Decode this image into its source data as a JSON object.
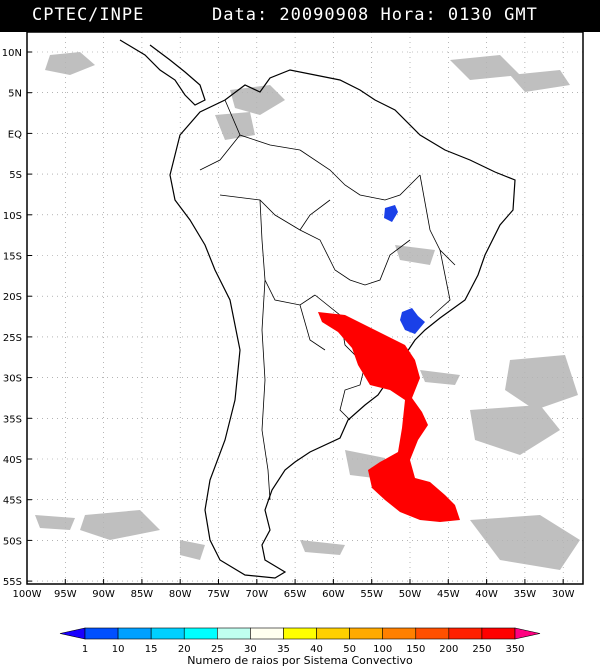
{
  "header": {
    "source": "CPTEC/INPE",
    "datetime": "Data: 20090908 Hora: 0130 GMT"
  },
  "map": {
    "lat_labels": [
      "10N",
      "5N",
      "EQ",
      "5S",
      "10S",
      "15S",
      "20S",
      "25S",
      "30S",
      "35S",
      "40S",
      "45S",
      "50S",
      "55S"
    ],
    "lon_labels": [
      "100W",
      "95W",
      "90W",
      "85W",
      "80W",
      "75W",
      "70W",
      "65W",
      "60W",
      "55W",
      "50W",
      "45W",
      "40W",
      "35W",
      "30W"
    ],
    "grid": "dotted",
    "colors": {
      "frame": "#000000",
      "cloud": "#b4b4b4",
      "coast": "#000000",
      "lightning_high": "#ff0000",
      "lightning_low": "#1030e0"
    }
  },
  "legend": {
    "values": [
      "1",
      "10",
      "15",
      "20",
      "25",
      "30",
      "35",
      "40",
      "50",
      "100",
      "150",
      "200",
      "250",
      "350"
    ],
    "colors": [
      "#1a00ff",
      "#0050ff",
      "#00a0ff",
      "#00d0ff",
      "#00ffff",
      "#c0fff0",
      "#fffff0",
      "#ffff00",
      "#ffd000",
      "#ffaa00",
      "#ff8000",
      "#ff5000",
      "#ff2000",
      "#ff0000",
      "#ff0080"
    ],
    "caption": "Numero de raios por Sistema Convectivo"
  }
}
